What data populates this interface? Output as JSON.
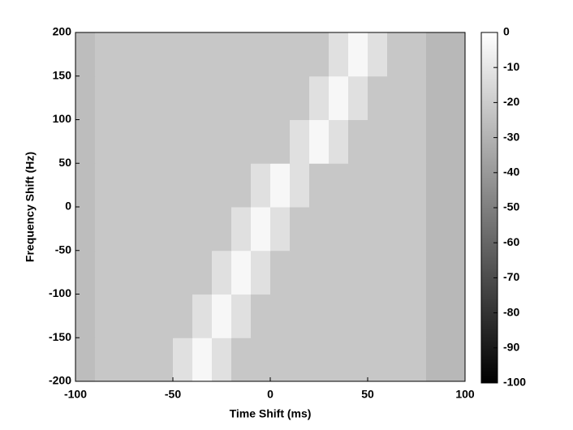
{
  "chart_data": {
    "type": "heatmap",
    "x_label": "Time Shift (ms)",
    "y_label": "Frequency Shift (Hz)",
    "x": [
      -95,
      -85,
      -75,
      -65,
      -55,
      -45,
      -35,
      -25,
      -15,
      -5,
      5,
      15,
      25,
      35,
      45,
      55,
      65,
      75,
      85,
      95
    ],
    "y": [
      -175,
      -125,
      -75,
      -25,
      25,
      75,
      125,
      175
    ],
    "z": [
      [
        -26,
        -22,
        -22,
        -22,
        -22,
        -12,
        -3,
        -12,
        -22,
        -22,
        -22,
        -22,
        -22,
        -22,
        -22,
        -22,
        -22,
        -22,
        -28,
        -28
      ],
      [
        -26,
        -22,
        -22,
        -22,
        -22,
        -22,
        -12,
        -3,
        -12,
        -22,
        -22,
        -22,
        -22,
        -22,
        -22,
        -22,
        -22,
        -22,
        -28,
        -28
      ],
      [
        -26,
        -22,
        -22,
        -22,
        -22,
        -22,
        -22,
        -12,
        -3,
        -12,
        -22,
        -22,
        -22,
        -22,
        -22,
        -22,
        -22,
        -22,
        -28,
        -28
      ],
      [
        -26,
        -22,
        -22,
        -22,
        -22,
        -22,
        -22,
        -22,
        -12,
        -3,
        -12,
        -22,
        -22,
        -22,
        -22,
        -22,
        -22,
        -22,
        -28,
        -28
      ],
      [
        -26,
        -22,
        -22,
        -22,
        -22,
        -22,
        -22,
        -22,
        -22,
        -12,
        -3,
        -12,
        -22,
        -22,
        -22,
        -22,
        -22,
        -22,
        -28,
        -28
      ],
      [
        -26,
        -22,
        -22,
        -22,
        -22,
        -22,
        -22,
        -22,
        -22,
        -22,
        -22,
        -12,
        -3,
        -12,
        -22,
        -22,
        -22,
        -22,
        -28,
        -28
      ],
      [
        -26,
        -22,
        -22,
        -22,
        -22,
        -22,
        -22,
        -22,
        -22,
        -22,
        -22,
        -22,
        -12,
        -3,
        -12,
        -22,
        -22,
        -22,
        -28,
        -28
      ],
      [
        -26,
        -22,
        -22,
        -22,
        -22,
        -22,
        -22,
        -22,
        -22,
        -22,
        -22,
        -22,
        -22,
        -12,
        -3,
        -12,
        -22,
        -22,
        -28,
        -28
      ]
    ],
    "xlim": [
      -100,
      100
    ],
    "xticks": [
      -100,
      -50,
      0,
      50,
      100
    ],
    "ylim": [
      -200,
      200
    ],
    "yticks": [
      -200,
      -150,
      -100,
      -50,
      0,
      50,
      100,
      150,
      200
    ],
    "clim": [
      -100,
      0
    ],
    "cticks": [
      0,
      -10,
      -20,
      -30,
      -40,
      -50,
      -60,
      -70,
      -80,
      -90,
      -100
    ],
    "colormap": "gray"
  }
}
